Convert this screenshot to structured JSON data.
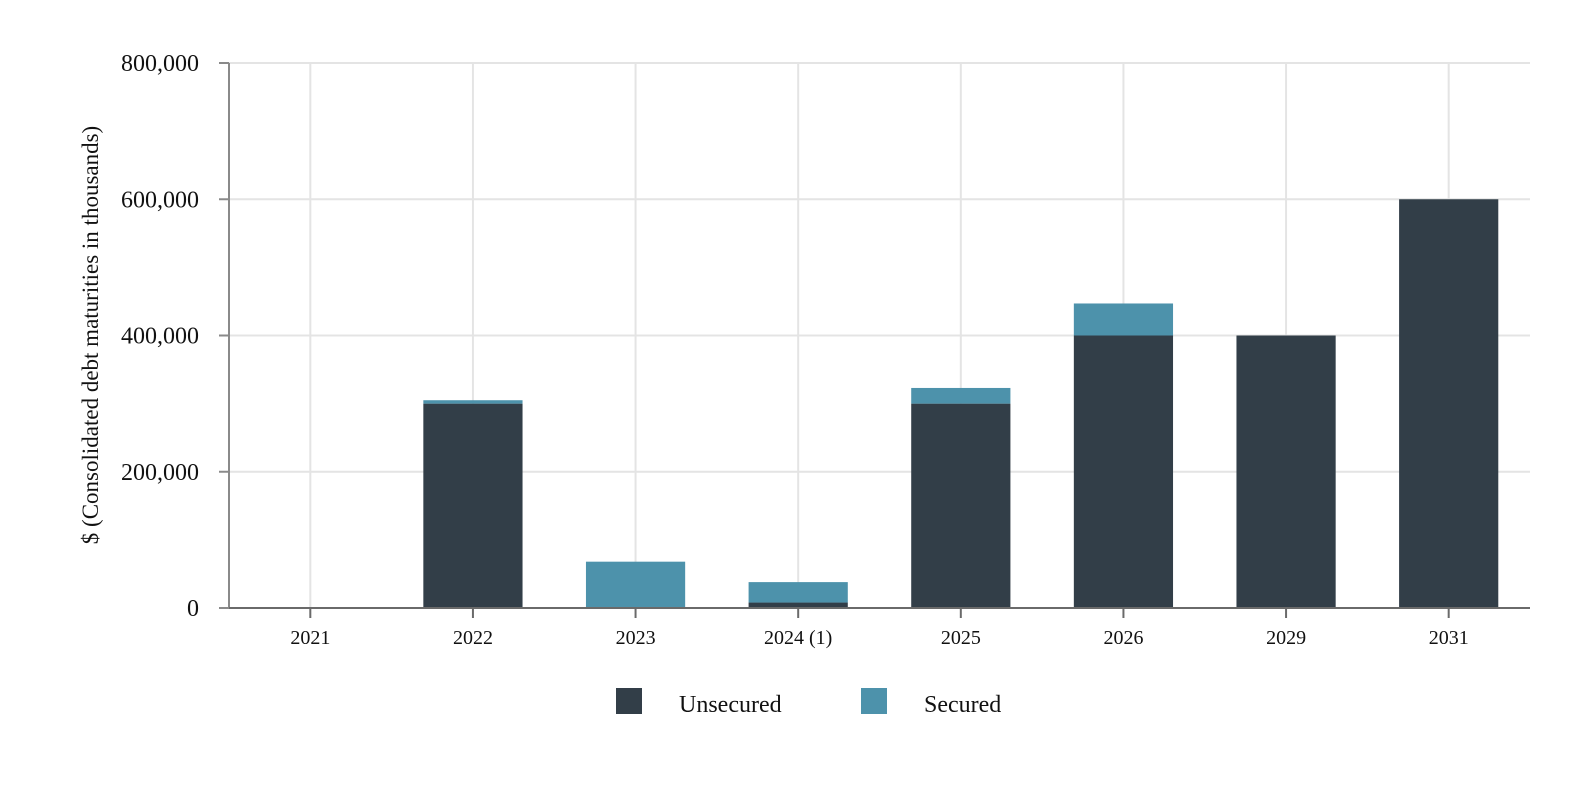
{
  "chart_data": {
    "type": "bar",
    "stacked": true,
    "categories": [
      "2021",
      "2022",
      "2023",
      "2024 (1)",
      "2025",
      "2026",
      "2029",
      "2031"
    ],
    "series": [
      {
        "name": "Unsecured",
        "color": "#323e48",
        "values": [
          0,
          300000,
          0,
          8000,
          300000,
          400000,
          400000,
          600000
        ]
      },
      {
        "name": "Secured",
        "color": "#4d92ab",
        "values": [
          0,
          5000,
          68000,
          30000,
          23000,
          47000,
          0,
          0
        ]
      }
    ],
    "xlabel": "",
    "ylabel": "$ (Consolidated debt maturities in thousands)",
    "ylim": [
      0,
      800000
    ],
    "yticks": [
      0,
      200000,
      400000,
      600000,
      800000
    ],
    "ytick_labels": [
      "0",
      "200,000",
      "400,000",
      "600,000",
      "800,000"
    ],
    "grid": true,
    "legend_position": "bottom-center"
  }
}
